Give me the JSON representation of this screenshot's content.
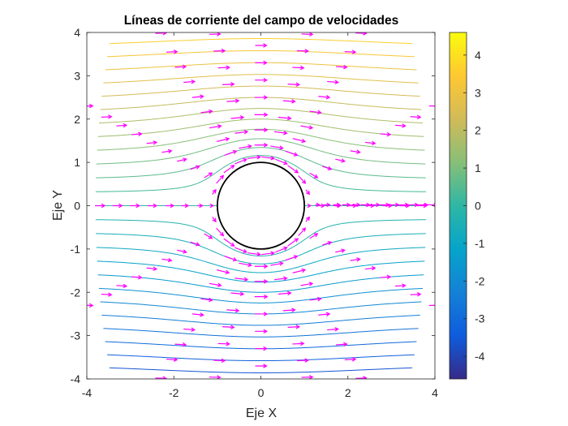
{
  "chart_data": {
    "type": "streamline",
    "title": "Líneas de corriente del campo de velocidades",
    "xlabel": "Eje X",
    "ylabel": "Eje Y",
    "xlim": [
      -4,
      4
    ],
    "ylim": [
      -4,
      4
    ],
    "xticks": [
      "-4",
      "-2",
      "0",
      "2",
      "4"
    ],
    "yticks": [
      "4",
      "3",
      "2",
      "1",
      "0",
      "-1",
      "-2",
      "-3",
      "-4"
    ],
    "grid": false,
    "cylinder": {
      "center": [
        0,
        0
      ],
      "radius": 1,
      "color": "#000000"
    },
    "uniform_flow_speed": 1,
    "streamfunction_levels": {
      "min": -4.5,
      "max": 4.5,
      "count": 31
    },
    "quiver": {
      "color": "#ff00ff",
      "radial_directions_deg": [
        0,
        30,
        60,
        75,
        90,
        105,
        120,
        150,
        180,
        210,
        240,
        255,
        270,
        285,
        300,
        330
      ],
      "radial_radii": [
        1.4,
        1.75,
        2.1,
        2.5,
        2.9,
        3.3,
        3.7,
        4.1,
        4.6,
        5.1
      ]
    },
    "colorbar": {
      "range": [
        -4.6,
        4.6
      ],
      "colormap": "parula",
      "ticks": [
        "4",
        "3",
        "2",
        "1",
        "0",
        "-1",
        "-2",
        "-3",
        "-4"
      ]
    }
  }
}
